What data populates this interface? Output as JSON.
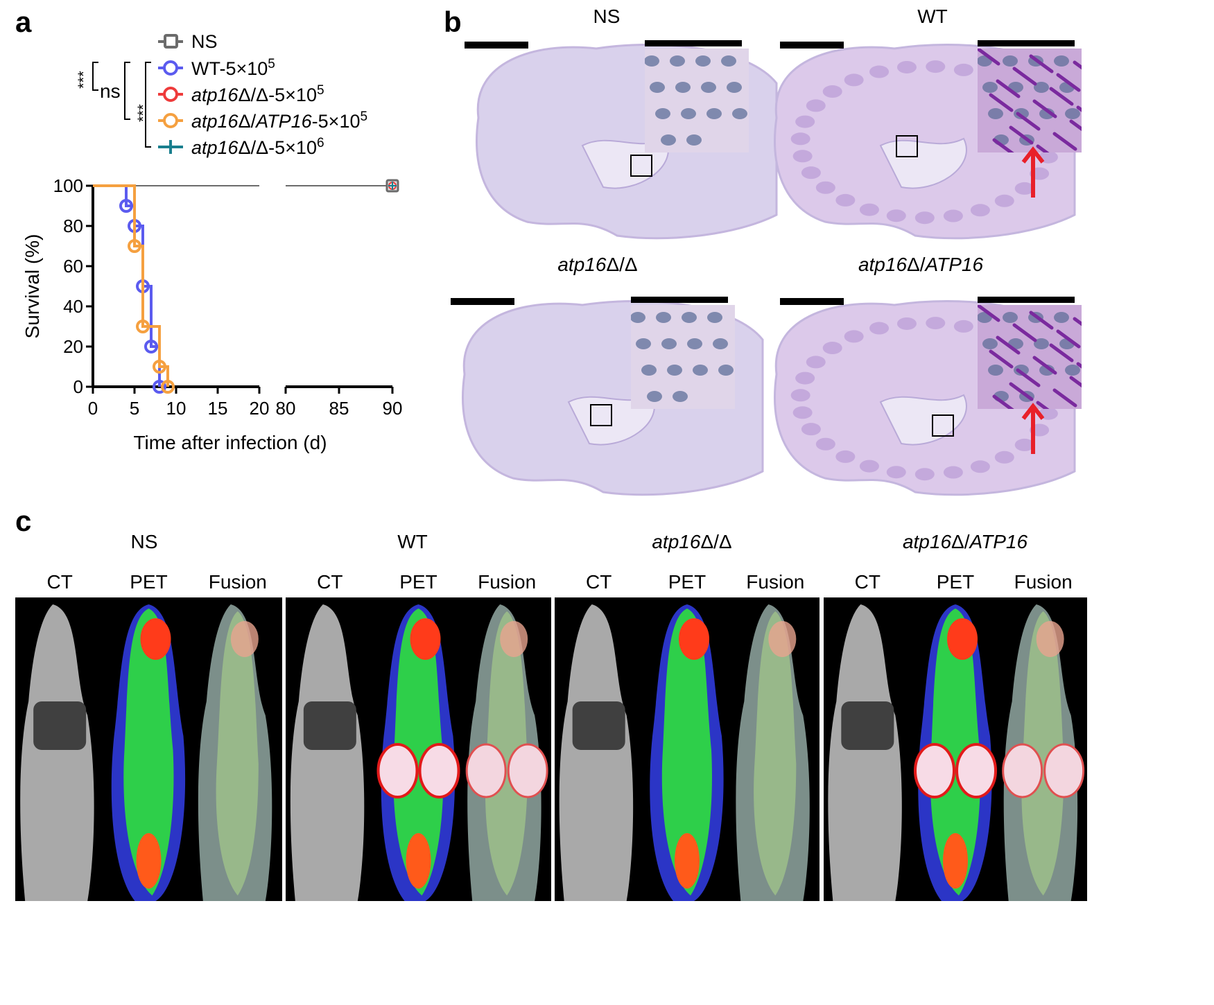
{
  "panel_labels": {
    "a": "a",
    "b": "b",
    "c": "c"
  },
  "panel_a": {
    "legend": [
      {
        "label": "NS",
        "italic_part": "",
        "plain_part": "NS",
        "color": "#6b6b6b",
        "marker": "square"
      },
      {
        "label": "WT-5×10^5",
        "italic_part": "",
        "plain_part": "WT-5×10",
        "exp": "5",
        "color": "#5b5bef",
        "marker": "circle"
      },
      {
        "label": "atp16Δ/Δ-5×10^5",
        "italic_part": "atp16",
        "plain_part": "Δ/Δ-5×10",
        "exp": "5",
        "color": "#ee3b3b",
        "marker": "circle"
      },
      {
        "label": "atp16Δ/ATP16-5×10^5",
        "italic_part": "atp16",
        "plain_part": "Δ/",
        "italic_part2": "ATP16",
        "plain_part2": "-5×10",
        "exp": "5",
        "color": "#f5a040",
        "marker": "circle"
      },
      {
        "label": "atp16Δ/Δ-5×10^6",
        "italic_part": "atp16",
        "plain_part": "Δ/Δ-5×10",
        "exp": "6",
        "color": "#1a7f8e",
        "marker": "plus"
      }
    ],
    "significance": {
      "star1": "***",
      "ns": "ns",
      "star2": "***"
    }
  },
  "chart_data": {
    "type": "line",
    "chart_style": "kaplan-meier step",
    "xlabel": "Time after infection (d)",
    "ylabel": "Survival  (%)",
    "x_axis_break": [
      20,
      80
    ],
    "xlim": [
      0,
      90
    ],
    "ylim": [
      0,
      100
    ],
    "xticks": [
      "0",
      "5",
      "10",
      "15",
      "20",
      "80",
      "85",
      "90"
    ],
    "yticks": [
      "0",
      "20",
      "40",
      "60",
      "80",
      "100"
    ],
    "series": [
      {
        "name": "NS",
        "color": "#6b6b6b",
        "x": [
          0,
          90
        ],
        "y": [
          100,
          100
        ]
      },
      {
        "name": "WT-5×10^5",
        "color": "#5b5bef",
        "x": [
          0,
          4,
          5,
          6,
          7,
          8
        ],
        "y": [
          100,
          90,
          80,
          50,
          20,
          0
        ]
      },
      {
        "name": "atp16Δ/Δ-5×10^5",
        "color": "#ee3b3b",
        "x": [
          0,
          90
        ],
        "y": [
          100,
          100
        ]
      },
      {
        "name": "atp16Δ/ATP16-5×10^5",
        "color": "#f5a040",
        "x": [
          0,
          5,
          6,
          8,
          9
        ],
        "y": [
          100,
          70,
          30,
          10,
          0
        ]
      },
      {
        "name": "atp16Δ/Δ-5×10^6",
        "color": "#1a7f8e",
        "x": [
          0,
          90
        ],
        "y": [
          100,
          100
        ]
      }
    ]
  },
  "panel_b": {
    "titles": [
      {
        "plain": "NS",
        "italic": ""
      },
      {
        "plain": "WT",
        "italic": ""
      },
      {
        "italic": "atp16",
        "plain": "Δ/Δ"
      },
      {
        "italic": "atp16",
        "plain": "Δ/",
        "italic2": "ATP16"
      }
    ]
  },
  "panel_c": {
    "groups": [
      {
        "plain": "NS",
        "italic": ""
      },
      {
        "plain": "WT",
        "italic": ""
      },
      {
        "italic": "atp16",
        "plain": "Δ/Δ"
      },
      {
        "italic": "atp16",
        "plain": "Δ/",
        "italic2": "ATP16"
      }
    ],
    "sub_labels": [
      "CT",
      "PET",
      "Fusion"
    ]
  }
}
